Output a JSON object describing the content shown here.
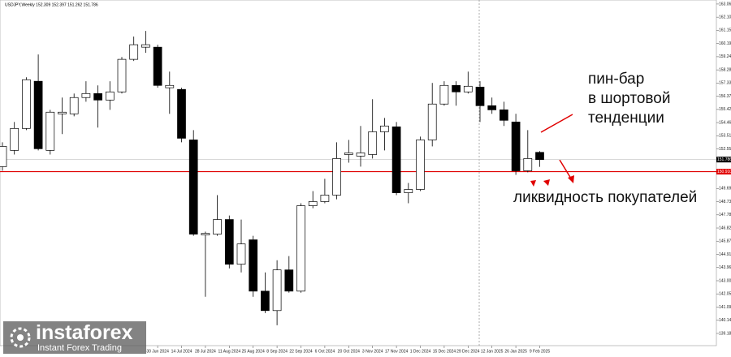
{
  "chart_data": {
    "type": "candlestick",
    "title": "USDJPY,Weekly 152.309 152.397 151.262 151.786",
    "categories": [
      null,
      null,
      null,
      null,
      null,
      null,
      null,
      null,
      null,
      null,
      null,
      null,
      null,
      "30 Jun 2024",
      null,
      "14 Jul 2024",
      null,
      "28 Jul 2024",
      null,
      "11 Aug 2024",
      null,
      "25 Aug 2024",
      null,
      "8 Sep 2024",
      null,
      "22 Sep 2024",
      null,
      "6 Oct 2024",
      null,
      "20 Oct 2024",
      null,
      "3 Nov 2024",
      null,
      "17 Nov 2024",
      null,
      "1 Dec 2024",
      null,
      "15 Dec 2024",
      null,
      "29 Dec 2024",
      null,
      "12 Jan 2025",
      null,
      "26 Jan 2025",
      null,
      "9 Feb 2025"
    ],
    "open": [
      151.27,
      152.45,
      154.04,
      157.46,
      152.45,
      155.1,
      155.1,
      156.28,
      156.57,
      156.1,
      156.69,
      159.05,
      159.93,
      159.93,
      156.99,
      156.87,
      153.21,
      146.32,
      146.38,
      147.44,
      144.2,
      145.97,
      142.25,
      140.84,
      143.79,
      142.25,
      148.44,
      148.74,
      149.21,
      152.15,
      152.04,
      152.15,
      153.8,
      154.16,
      149.38,
      149.62,
      153.21,
      155.81,
      157.16,
      156.69,
      157.04,
      155.69,
      155.39,
      154.51,
      150.97,
      152.309
    ],
    "high": [
      153.04,
      154.51,
      157.75,
      159.4,
      155.39,
      156.28,
      156.57,
      157.46,
      157.16,
      157.46,
      159.22,
      160.7,
      161.11,
      160.11,
      158.16,
      156.99,
      153.92,
      146.56,
      149.21,
      147.73,
      147.44,
      146.26,
      143.61,
      144.49,
      144.79,
      148.62,
      149.5,
      150.39,
      153.04,
      153.21,
      154.22,
      156.16,
      154.8,
      154.51,
      150.09,
      153.45,
      157.34,
      157.46,
      157.46,
      158.16,
      157.46,
      156.28,
      155.98,
      155.1,
      153.92,
      152.397
    ],
    "low": [
      150.97,
      152.15,
      153.92,
      152.45,
      152.15,
      153.63,
      154.92,
      155.98,
      154.1,
      155.39,
      156.57,
      158.93,
      159.52,
      156.99,
      155.1,
      153.04,
      146.26,
      141.84,
      146.26,
      143.9,
      143.61,
      141.84,
      140.66,
      139.78,
      142.14,
      142.14,
      148.26,
      148.62,
      148.91,
      151.56,
      151.27,
      151.86,
      152.45,
      149.21,
      148.62,
      149.5,
      152.74,
      155.69,
      155.69,
      156.57,
      154.51,
      155.1,
      154.22,
      150.68,
      150.86,
      151.262
    ],
    "close": [
      152.74,
      154.04,
      157.57,
      152.57,
      155.22,
      155.22,
      156.28,
      156.57,
      156.1,
      156.69,
      159.05,
      160.11,
      160.11,
      157.16,
      157.16,
      153.33,
      146.38,
      146.44,
      147.44,
      144.2,
      145.67,
      142.25,
      140.84,
      143.79,
      142.25,
      148.44,
      148.74,
      149.21,
      151.86,
      152.27,
      152.27,
      153.8,
      154.22,
      149.38,
      149.62,
      153.21,
      155.81,
      157.16,
      156.69,
      157.1,
      155.69,
      155.39,
      154.63,
      150.97,
      151.86,
      151.786
    ],
    "up_color": "#ffffff",
    "down_color": "#000000",
    "ylim": [
      138.3,
      163.35
    ],
    "yticks": [
      {
        "value": 163.06,
        "label": "163.060"
      },
      {
        "value": 162.105,
        "label": "162.105"
      },
      {
        "value": 161.15,
        "label": "161.150"
      },
      {
        "value": 160.195,
        "label": "160.195"
      },
      {
        "value": 159.24,
        "label": "159.240"
      },
      {
        "value": 158.285,
        "label": "158.285"
      },
      {
        "value": 157.33,
        "label": "157.330"
      },
      {
        "value": 156.375,
        "label": "156.375"
      },
      {
        "value": 155.42,
        "label": "155.420"
      },
      {
        "value": 154.465,
        "label": "154.465"
      },
      {
        "value": 153.51,
        "label": "153.510"
      },
      {
        "value": 152.555,
        "label": "152.555"
      },
      {
        "value": 149.69,
        "label": "149.690"
      },
      {
        "value": 148.735,
        "label": "148.735"
      },
      {
        "value": 147.78,
        "label": "147.780"
      },
      {
        "value": 146.825,
        "label": "146.825"
      },
      {
        "value": 145.87,
        "label": "145.870"
      },
      {
        "value": 144.915,
        "label": "144.915"
      },
      {
        "value": 143.96,
        "label": "143.960"
      },
      {
        "value": 143.005,
        "label": "143.005"
      },
      {
        "value": 142.05,
        "label": "142.050"
      },
      {
        "value": 141.095,
        "label": "141.095"
      },
      {
        "value": 140.14,
        "label": "140.140"
      },
      {
        "value": 139.185,
        "label": "139.185"
      }
    ],
    "hlines": [
      {
        "value": 151.786,
        "label": "151.786",
        "color": "#c0c0c0",
        "label_bg": "#000000"
      },
      {
        "value": 150.91,
        "label": "150.910",
        "color": "#e00000",
        "label_bg": "#e00000"
      }
    ],
    "pin_bar_note": [
      "пин-бар",
      "в шортовой",
      "тенденции"
    ],
    "liquidity_note": "ликвидность покупателей"
  },
  "branding": {
    "name": "instaforex",
    "tagline": "Instant Forex Trading"
  }
}
